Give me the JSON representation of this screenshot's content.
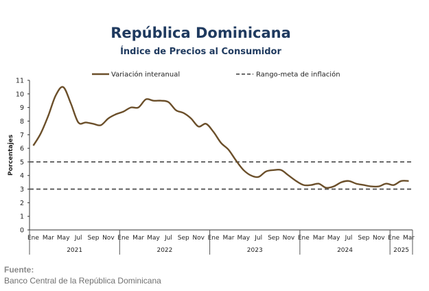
{
  "chart_data": {
    "type": "line",
    "title": "República Dominicana",
    "subtitle": "Índice de Precios al Consumidor",
    "ylabel": "Porcentajes",
    "ylim": [
      0,
      11
    ],
    "yticks": [
      0,
      1,
      2,
      3,
      4,
      5,
      6,
      7,
      8,
      9,
      10,
      11
    ],
    "grid": false,
    "legend_position": "top",
    "x": [
      "2021-01",
      "2021-02",
      "2021-03",
      "2021-04",
      "2021-05",
      "2021-06",
      "2021-07",
      "2021-08",
      "2021-09",
      "2021-10",
      "2021-11",
      "2021-12",
      "2022-01",
      "2022-02",
      "2022-03",
      "2022-04",
      "2022-05",
      "2022-06",
      "2022-07",
      "2022-08",
      "2022-09",
      "2022-10",
      "2022-11",
      "2022-12",
      "2023-01",
      "2023-02",
      "2023-03",
      "2023-04",
      "2023-05",
      "2023-06",
      "2023-07",
      "2023-08",
      "2023-09",
      "2023-10",
      "2023-11",
      "2023-12",
      "2024-01",
      "2024-02",
      "2024-03",
      "2024-04",
      "2024-05",
      "2024-06",
      "2024-07",
      "2024-08",
      "2024-09",
      "2024-10",
      "2024-11",
      "2024-12",
      "2025-01",
      "2025-02",
      "2025-03"
    ],
    "x_tick_labels": [
      "Ene",
      "Mar",
      "May",
      "Jul",
      "Sep",
      "Nov",
      "Ene",
      "Mar",
      "May",
      "Jul",
      "Sep",
      "Nov",
      "Ene",
      "Mar",
      "May",
      "Jul",
      "Sep",
      "Nov",
      "Ene",
      "Mar",
      "May",
      "Jul",
      "Sep",
      "Nov",
      "Ene",
      "Mar"
    ],
    "x_tick_months": [
      0,
      2,
      4,
      6,
      8,
      10,
      12,
      14,
      16,
      18,
      20,
      22,
      24,
      26,
      28,
      30,
      32,
      34,
      36,
      38,
      40,
      42,
      44,
      46,
      48,
      50
    ],
    "year_groups": [
      {
        "label": "2021",
        "start": 0,
        "end": 11
      },
      {
        "label": "2022",
        "start": 12,
        "end": 23
      },
      {
        "label": "2023",
        "start": 24,
        "end": 35
      },
      {
        "label": "2024",
        "start": 36,
        "end": 47
      },
      {
        "label": "2025",
        "start": 48,
        "end": 50
      }
    ],
    "series": [
      {
        "name": "Variación interanual",
        "style": "solid",
        "color": "#6b4f2a",
        "values": [
          6.2,
          7.1,
          8.4,
          9.9,
          10.5,
          9.3,
          7.9,
          7.9,
          7.8,
          7.7,
          8.2,
          8.5,
          8.7,
          9.0,
          9.0,
          9.6,
          9.5,
          9.5,
          9.4,
          8.8,
          8.6,
          8.2,
          7.6,
          7.8,
          7.2,
          6.4,
          5.9,
          5.1,
          4.4,
          4.0,
          3.9,
          4.3,
          4.4,
          4.4,
          4.0,
          3.6,
          3.3,
          3.3,
          3.4,
          3.1,
          3.2,
          3.5,
          3.6,
          3.4,
          3.3,
          3.2,
          3.2,
          3.4,
          3.3,
          3.6,
          3.6
        ]
      },
      {
        "name": "Rango-meta de inflación",
        "style": "dashed",
        "color": "#555555",
        "values_upper": 5,
        "values_lower": 3
      }
    ]
  },
  "source": {
    "label": "Fuente:",
    "text": "Banco Central de la República Dominicana"
  }
}
